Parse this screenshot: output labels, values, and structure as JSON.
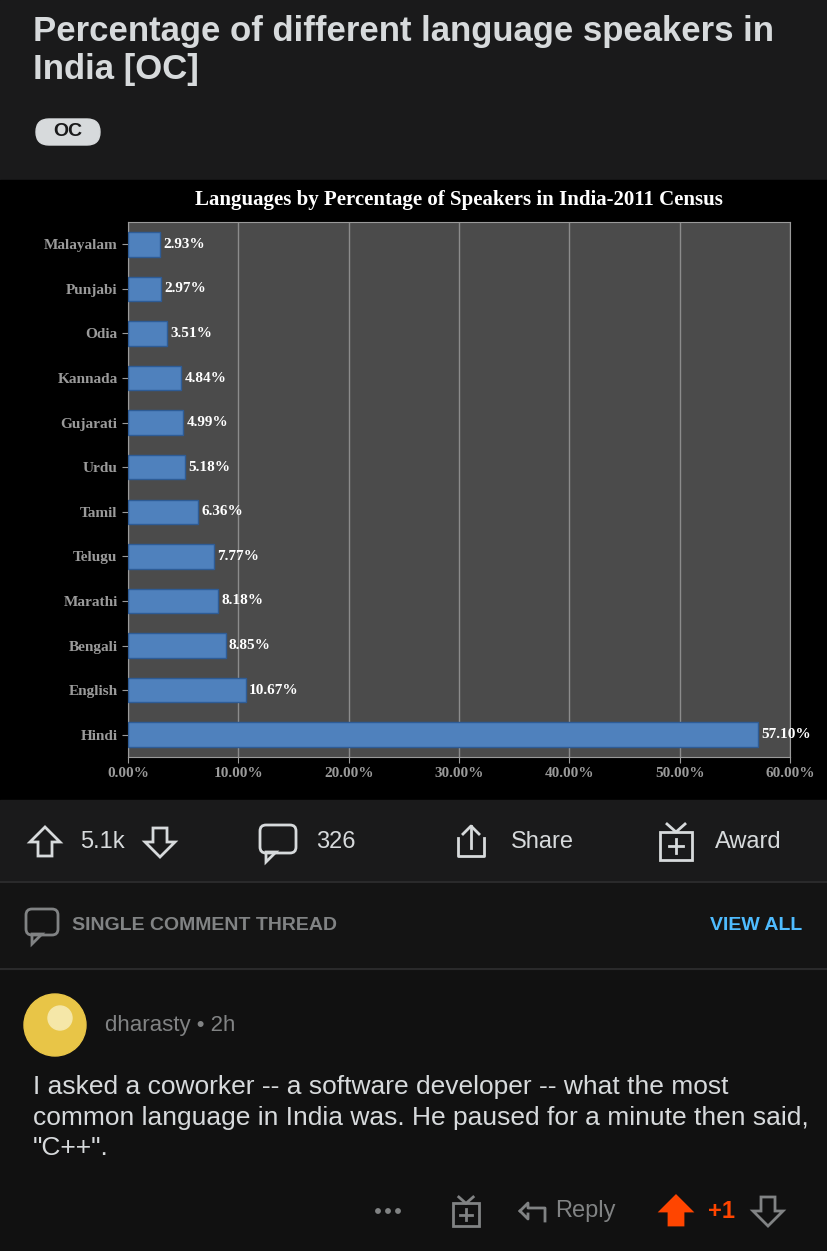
{
  "post": {
    "title": "Percentage of different language speakers in India [OC]",
    "flair": "OC"
  },
  "chart_data": {
    "type": "bar",
    "orientation": "horizontal",
    "title": "Languages by Percentage of Speakers in India-2011 Census",
    "categories": [
      "Malayalam",
      "Punjabi",
      "Odia",
      "Kannada",
      "Gujarati",
      "Urdu",
      "Tamil",
      "Telugu",
      "Marathi",
      "Bengali",
      "English",
      "Hindi"
    ],
    "values": [
      2.93,
      2.97,
      3.51,
      4.84,
      4.99,
      5.18,
      6.36,
      7.77,
      8.18,
      8.85,
      10.67,
      57.1
    ],
    "value_labels": [
      "2.93%",
      "2.97%",
      "3.51%",
      "4.84%",
      "4.99%",
      "5.18%",
      "6.36%",
      "7.77%",
      "8.18%",
      "8.85%",
      "10.67%",
      "57.10%"
    ],
    "data_labels": true,
    "color": "#4f81bd",
    "grid": true,
    "xlim": [
      0,
      60
    ],
    "xticks": [
      {
        "value": 0,
        "label": "0.00%"
      },
      {
        "value": 10,
        "label": "10.00%"
      },
      {
        "value": 20,
        "label": "20.00%"
      },
      {
        "value": 30,
        "label": "30.00%"
      },
      {
        "value": 40,
        "label": "40.00%"
      },
      {
        "value": 50,
        "label": "50.00%"
      },
      {
        "value": 60,
        "label": "60.00%"
      }
    ]
  },
  "actions": {
    "upvotes": "5.1k",
    "comments": "326",
    "share": "Share",
    "award": "Award"
  },
  "thread": {
    "header": "SINGLE COMMENT THREAD",
    "view_all": "VIEW ALL"
  },
  "comment": {
    "user": "dharasty",
    "separator": "•",
    "age": "2h",
    "text": "I asked a coworker -- a software developer -- what the most common language in India was. He paused for a minute then said, \"C++\".",
    "reply": "Reply",
    "score": "+1"
  }
}
